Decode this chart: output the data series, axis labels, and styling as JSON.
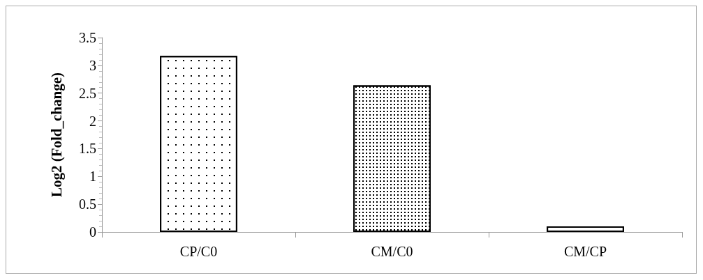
{
  "chart_data": {
    "type": "bar",
    "ylabel": "Log2 (Fold_change)",
    "categories": [
      "CP/C0",
      "CM/C0",
      "CM/CP"
    ],
    "values": [
      3.17,
      2.64,
      0.1
    ],
    "colors": [
      "#ffffff",
      "#ffffff",
      "#ffffff"
    ],
    "ylim": [
      0,
      3.5
    ],
    "yticks": [
      0,
      0.5,
      1,
      1.5,
      2,
      2.5,
      3,
      3.5
    ],
    "grid": false
  }
}
